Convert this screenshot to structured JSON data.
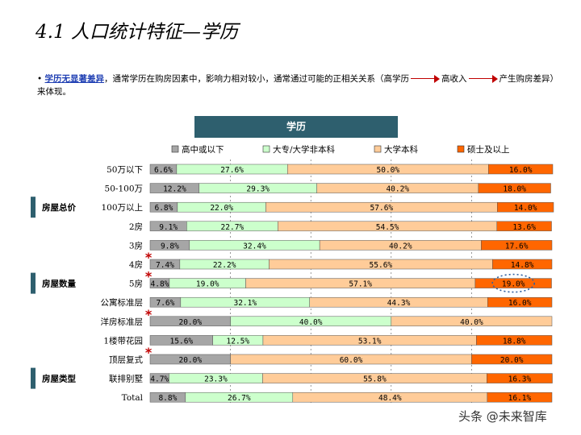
{
  "title": "4.1 人口统计特征—学历",
  "note": {
    "highlight": "学历无显著差异",
    "part1": "，通常学历在购房因素中，影响力相对较小，通常通过可能的正相关关系（高学历",
    "part2": "高收入",
    "part3": "产生购房差异）来体现。"
  },
  "chart_header": "学历",
  "watermark": "头条 @未来智库",
  "colors": {
    "series": [
      "#a6a6a6",
      "#ccffcc",
      "#ffcc99",
      "#ff6600"
    ],
    "header_bg": "#2e5f6e",
    "group_bg": "#2e5f6e",
    "star": "#c00000"
  },
  "groups": [
    {
      "label": "房屋总价",
      "row": 2
    },
    {
      "label": "房屋数量",
      "row": 6
    },
    {
      "label": "房屋类型",
      "row": 11
    }
  ],
  "stars_on_rows": [
    5,
    6,
    8,
    10
  ],
  "circled": {
    "row": 6,
    "series": 3
  },
  "chart_data": {
    "type": "bar",
    "orientation": "horizontal",
    "stacked": true,
    "percent": true,
    "title": "学历",
    "legend_position": "top",
    "categories": [
      "50万以下",
      "50-100万",
      "100万以上",
      "2房",
      "3房",
      "4房",
      "5房",
      "公寓标准层",
      "洋房标准层",
      "1楼带花园",
      "顶层复式",
      "联排别墅",
      "Total"
    ],
    "series": [
      {
        "name": "高中或以下",
        "values": [
          6.6,
          12.2,
          6.8,
          9.1,
          9.8,
          7.4,
          4.8,
          7.6,
          20.0,
          15.6,
          20.0,
          4.7,
          8.8
        ]
      },
      {
        "name": "大专/大学非本科",
        "values": [
          27.6,
          29.3,
          22.0,
          22.7,
          32.4,
          22.2,
          19.0,
          32.1,
          40.0,
          12.5,
          0,
          23.3,
          26.7
        ]
      },
      {
        "name": "大学本科",
        "values": [
          50.0,
          40.2,
          57.6,
          54.5,
          40.2,
          55.6,
          57.1,
          44.3,
          40.0,
          53.1,
          60.0,
          55.8,
          48.4
        ]
      },
      {
        "name": "硕士及以上",
        "values": [
          16.0,
          18.0,
          14.0,
          13.6,
          17.6,
          14.8,
          19.0,
          16.0,
          0,
          18.8,
          20.0,
          16.3,
          16.1
        ]
      }
    ],
    "labels": [
      [
        "6.6%",
        "27.6%",
        "50.0%",
        "16.0%"
      ],
      [
        "12.2%",
        "29.3%",
        "40.2%",
        "18.0%"
      ],
      [
        "6.8%",
        "22.0%",
        "57.6%",
        "14.0%"
      ],
      [
        "9.1%",
        "22.7%",
        "54.5%",
        "13.6%"
      ],
      [
        "9.8%",
        "32.4%",
        "40.2%",
        "17.6%"
      ],
      [
        "7.4%",
        "22.2%",
        "55.6%",
        "14.8%"
      ],
      [
        "4.8%",
        "19.0%",
        "57.1%",
        "19.0%"
      ],
      [
        "7.6%",
        "32.1%",
        "44.3%",
        "16.0%"
      ],
      [
        "20.0%",
        "40.0%",
        "40.0%",
        ""
      ],
      [
        "15.6%",
        "12.5%",
        "53.1%",
        "18.8%"
      ],
      [
        "20.0%",
        "",
        "60.0%",
        "20.0%"
      ],
      [
        "4.7%",
        "23.3%",
        "55.8%",
        "16.3%"
      ],
      [
        "8.8%",
        "26.7%",
        "48.4%",
        "16.1%"
      ]
    ]
  }
}
